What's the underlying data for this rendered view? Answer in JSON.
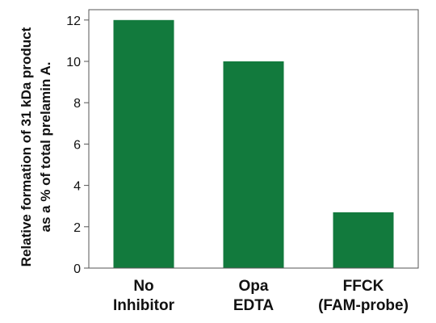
{
  "chart_data": {
    "type": "bar",
    "categories": [
      [
        "No",
        "Inhibitor"
      ],
      [
        "Opa",
        "EDTA"
      ],
      [
        "FFCK",
        "(FAM-probe)"
      ]
    ],
    "values": [
      12.0,
      10.0,
      2.7
    ],
    "ylabel": [
      "Relative formation of 31 kDa product",
      "as a % of total prelamin A."
    ],
    "xlabel": "",
    "ylim": [
      0,
      12.5
    ],
    "yticks": [
      0,
      2,
      4,
      6,
      8,
      10,
      12
    ],
    "grid": false,
    "bar_color": "#127a3d"
  }
}
